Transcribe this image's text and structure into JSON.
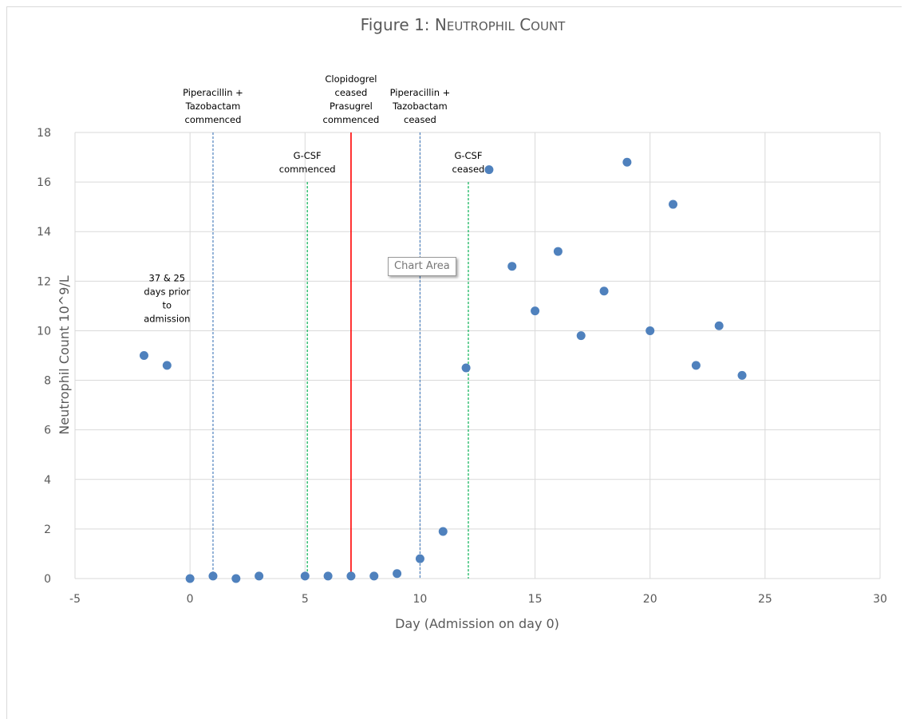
{
  "chart_data": {
    "type": "scatter",
    "title_prefix": "Figure 1: ",
    "title_main": "Neutrophil Count",
    "xlabel": "Day (Admission on day 0)",
    "ylabel": "Neutrophil Count 10^9/L",
    "xlim": [
      -5,
      30
    ],
    "ylim": [
      0,
      18
    ],
    "x_ticks": [
      -5,
      0,
      5,
      10,
      15,
      20,
      25,
      30
    ],
    "y_ticks": [
      0,
      2,
      4,
      6,
      8,
      10,
      12,
      14,
      16,
      18
    ],
    "grid": true,
    "marker_color": "#4f81bd",
    "points": [
      {
        "x": -2,
        "y": 9.0
      },
      {
        "x": -1,
        "y": 8.6
      },
      {
        "x": 0,
        "y": 0.0
      },
      {
        "x": 1,
        "y": 0.1
      },
      {
        "x": 2,
        "y": 0.0
      },
      {
        "x": 3,
        "y": 0.1
      },
      {
        "x": 5,
        "y": 0.1
      },
      {
        "x": 6,
        "y": 0.1
      },
      {
        "x": 7,
        "y": 0.1
      },
      {
        "x": 8,
        "y": 0.1
      },
      {
        "x": 9,
        "y": 0.2
      },
      {
        "x": 10,
        "y": 0.8
      },
      {
        "x": 11,
        "y": 1.9
      },
      {
        "x": 12,
        "y": 8.5
      },
      {
        "x": 13,
        "y": 16.5
      },
      {
        "x": 14,
        "y": 12.6
      },
      {
        "x": 15,
        "y": 10.8
      },
      {
        "x": 16,
        "y": 13.2
      },
      {
        "x": 17,
        "y": 9.8
      },
      {
        "x": 18,
        "y": 11.6
      },
      {
        "x": 19,
        "y": 16.8
      },
      {
        "x": 20,
        "y": 10.0
      },
      {
        "x": 21,
        "y": 15.1
      },
      {
        "x": 22,
        "y": 8.6
      },
      {
        "x": 23,
        "y": 10.2
      },
      {
        "x": 24,
        "y": 8.2
      }
    ],
    "reference_lines": [
      {
        "x": 1,
        "y_top": 18,
        "color": "#4f81bd",
        "style": "dashed",
        "label": [
          "Piperacillin +",
          "Tazobactam",
          "commenced"
        ]
      },
      {
        "x": 5.1,
        "y_top": 16,
        "color": "#00b050",
        "style": "dashed",
        "label": [
          "G-CSF",
          "commenced"
        ]
      },
      {
        "x": 7,
        "y_top": 18,
        "color": "#ff0000",
        "style": "solid",
        "label": [
          "Clopidogrel",
          "ceased",
          "Prasugrel",
          "commenced"
        ]
      },
      {
        "x": 10,
        "y_top": 18,
        "color": "#4f81bd",
        "style": "dashed",
        "label": [
          "Piperacillin +",
          "Tazobactam",
          "ceased"
        ]
      },
      {
        "x": 12.1,
        "y_top": 16,
        "color": "#00b050",
        "style": "dashed",
        "label": [
          "G-CSF",
          "ceased"
        ]
      }
    ],
    "annotations": [
      {
        "text": [
          "37 & 25",
          "days prior",
          "to",
          "admission"
        ],
        "x": -1,
        "y": 12.0
      }
    ]
  },
  "tooltip": {
    "label": "Chart Area"
  }
}
